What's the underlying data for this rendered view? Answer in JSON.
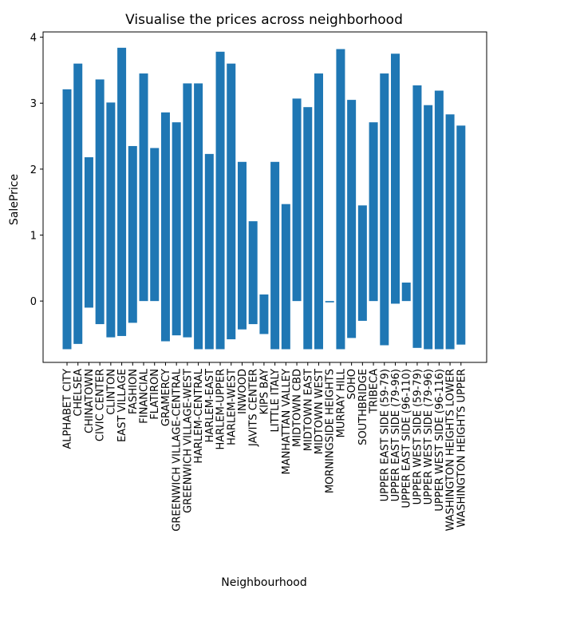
{
  "chart_data": {
    "type": "bar",
    "title": "Visualise the prices across neighborhood",
    "xlabel": "Neighbourhood",
    "ylabel": "SalePrice",
    "ylim": [
      -0.93,
      4.08
    ],
    "yticks": [
      0,
      1,
      2,
      3,
      4
    ],
    "grid": false,
    "bar_color": "#1f77b4",
    "categories": [
      "ALPHABET CITY",
      "CHELSEA",
      "CHINATOWN",
      "CIVIC CENTER",
      "CLINTON",
      "EAST VILLAGE",
      "FASHION",
      "FINANCIAL",
      "FLATIRON",
      "GRAMERCY",
      "GREENWICH VILLAGE-CENTRAL",
      "GREENWICH VILLAGE-WEST",
      "HARLEM-CENTRAL",
      "HARLEM-EAST",
      "HARLEM-UPPER",
      "HARLEM-WEST",
      "INWOOD",
      "JAVITS CENTER",
      "KIPS BAY",
      "LITTLE ITALY",
      "MANHATTAN VALLEY",
      "MIDTOWN CBD",
      "MIDTOWN EAST",
      "MIDTOWN WEST",
      "MORNINGSIDE HEIGHTS",
      "MURRAY HILL",
      "SOHO",
      "SOUTHBRIDGE",
      "TRIBECA",
      "UPPER EAST SIDE (59-79)",
      "UPPER EAST SIDE (79-96)",
      "UPPER EAST SIDE (96-110)",
      "UPPER WEST SIDE (59-79)",
      "UPPER WEST SIDE (79-96)",
      "UPPER WEST SIDE (96-116)",
      "WASHINGTON HEIGHTS LOWER",
      "WASHINGTON HEIGHTS UPPER"
    ],
    "bars": [
      {
        "low": -0.73,
        "high": 3.21
      },
      {
        "low": -0.65,
        "high": 3.6
      },
      {
        "low": -0.1,
        "high": 2.18
      },
      {
        "low": -0.35,
        "high": 3.36
      },
      {
        "low": -0.55,
        "high": 3.01
      },
      {
        "low": -0.53,
        "high": 3.84
      },
      {
        "low": -0.33,
        "high": 2.35
      },
      {
        "low": 0.0,
        "high": 3.45
      },
      {
        "low": 0.0,
        "high": 2.32
      },
      {
        "low": -0.61,
        "high": 2.86
      },
      {
        "low": -0.52,
        "high": 2.71
      },
      {
        "low": -0.55,
        "high": 3.3
      },
      {
        "low": -0.73,
        "high": 3.3
      },
      {
        "low": -0.73,
        "high": 2.23
      },
      {
        "low": -0.73,
        "high": 3.78
      },
      {
        "low": -0.58,
        "high": 3.6
      },
      {
        "low": -0.43,
        "high": 2.11
      },
      {
        "low": -0.35,
        "high": 1.21
      },
      {
        "low": -0.5,
        "high": 0.1
      },
      {
        "low": -0.73,
        "high": 2.11
      },
      {
        "low": -0.73,
        "high": 1.47
      },
      {
        "low": 0.0,
        "high": 3.07
      },
      {
        "low": -0.73,
        "high": 2.94
      },
      {
        "low": -0.73,
        "high": 3.45
      },
      {
        "low": -0.02,
        "high": 0.0
      },
      {
        "low": -0.73,
        "high": 3.82
      },
      {
        "low": -0.56,
        "high": 3.05
      },
      {
        "low": -0.3,
        "high": 1.45
      },
      {
        "low": 0.0,
        "high": 2.71
      },
      {
        "low": -0.67,
        "high": 3.45
      },
      {
        "low": -0.04,
        "high": 3.75
      },
      {
        "low": 0.0,
        "high": 0.28
      },
      {
        "low": -0.71,
        "high": 3.27
      },
      {
        "low": -0.73,
        "high": 2.97
      },
      {
        "low": -0.73,
        "high": 3.19
      },
      {
        "low": -0.73,
        "high": 2.83
      },
      {
        "low": -0.66,
        "high": 2.66
      }
    ]
  }
}
